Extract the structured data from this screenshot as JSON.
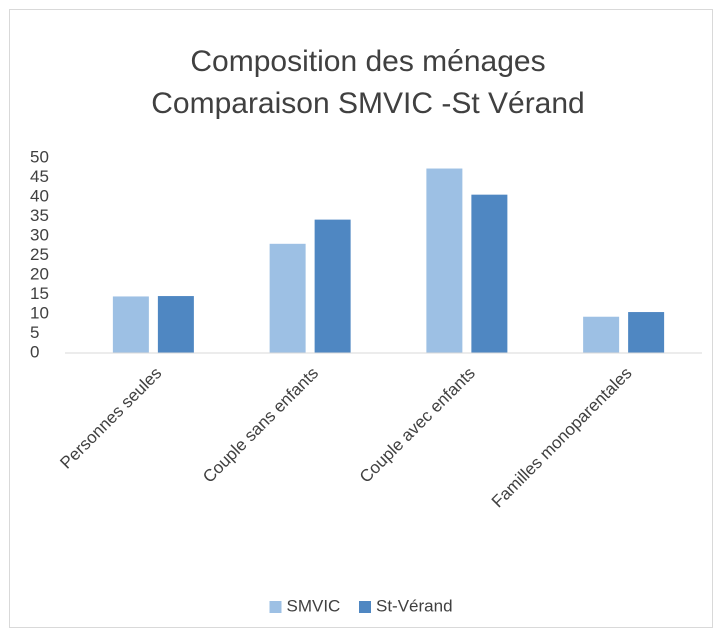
{
  "chart_data": {
    "type": "bar",
    "title": "Composition des ménages",
    "subtitle": "Comparaison SMVIC -St Vérand",
    "categories": [
      "Personnes seules",
      "Couple sans enfants",
      "Couple avec enfants",
      "Familles monoparentales"
    ],
    "series": [
      {
        "name": "SMVIC",
        "color": "#9dc0e4",
        "values": [
          14.5,
          28,
          47.3,
          9.3
        ]
      },
      {
        "name": "St-Vérand",
        "color": "#4f87c2",
        "values": [
          14.6,
          34.2,
          40.6,
          10.5
        ]
      }
    ],
    "ylim": [
      0,
      50
    ],
    "yticks": [
      0,
      5,
      10,
      15,
      20,
      25,
      30,
      35,
      40,
      45,
      50
    ],
    "grid": false,
    "legend": "bottom"
  }
}
